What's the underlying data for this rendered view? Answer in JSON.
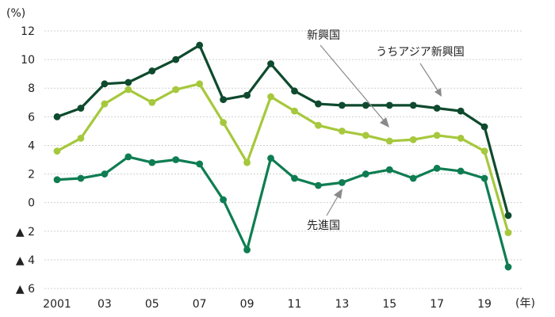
{
  "chart_data": {
    "type": "line",
    "title": "",
    "xlabel": "",
    "ylabel": "",
    "y_unit_label": "(%)",
    "x_unit_label": "(年)",
    "ylim": [
      -6,
      12
    ],
    "y_ticks": [
      {
        "value": 12,
        "label": "12"
      },
      {
        "value": 10,
        "label": "10"
      },
      {
        "value": 8,
        "label": "8"
      },
      {
        "value": 6,
        "label": "6"
      },
      {
        "value": 4,
        "label": "4"
      },
      {
        "value": 2,
        "label": "2"
      },
      {
        "value": 0,
        "label": "0"
      },
      {
        "value": -2,
        "label": "▲ 2"
      },
      {
        "value": -4,
        "label": "▲ 4"
      },
      {
        "value": -6,
        "label": "▲ 6"
      }
    ],
    "x_ticks": [
      {
        "value": 2001,
        "label": "2001"
      },
      {
        "value": 2003,
        "label": "03"
      },
      {
        "value": 2005,
        "label": "05"
      },
      {
        "value": 2007,
        "label": "07"
      },
      {
        "value": 2009,
        "label": "09"
      },
      {
        "value": 2011,
        "label": "11"
      },
      {
        "value": 2013,
        "label": "13"
      },
      {
        "value": 2015,
        "label": "15"
      },
      {
        "value": 2017,
        "label": "17"
      },
      {
        "value": 2019,
        "label": "19"
      }
    ],
    "grid": "horizontal dashed",
    "legend": "none (series labelled by callouts)",
    "x": [
      2001,
      2002,
      2003,
      2004,
      2005,
      2006,
      2007,
      2008,
      2009,
      2010,
      2011,
      2012,
      2013,
      2014,
      2015,
      2016,
      2017,
      2018,
      2019,
      2020
    ],
    "series": [
      {
        "name": "うちアジア新興国",
        "color": "#0f4a2e",
        "values": [
          6.0,
          6.6,
          8.3,
          8.4,
          9.2,
          10.0,
          11.0,
          7.2,
          7.5,
          9.7,
          7.8,
          6.9,
          6.8,
          6.8,
          6.8,
          6.8,
          6.6,
          6.4,
          5.3,
          -0.9
        ]
      },
      {
        "name": "新興国",
        "color": "#a6c83c",
        "values": [
          3.6,
          4.5,
          6.9,
          7.9,
          7.0,
          7.9,
          8.3,
          5.6,
          2.8,
          7.4,
          6.4,
          5.4,
          5.0,
          4.7,
          4.3,
          4.4,
          4.7,
          4.5,
          3.6,
          -2.1
        ]
      },
      {
        "name": "先進国",
        "color": "#0e7d52",
        "values": [
          1.6,
          1.7,
          2.0,
          3.2,
          2.8,
          3.0,
          2.7,
          0.2,
          -3.3,
          3.1,
          1.7,
          1.2,
          1.4,
          2.0,
          2.3,
          1.7,
          2.4,
          2.2,
          1.7,
          -4.5
        ]
      }
    ],
    "annotations": [
      {
        "text": "新興国",
        "series": "新興国"
      },
      {
        "text": "うちアジア新興国",
        "series": "うちアジア新興国"
      },
      {
        "text": "先進国",
        "series": "先進国"
      }
    ]
  }
}
